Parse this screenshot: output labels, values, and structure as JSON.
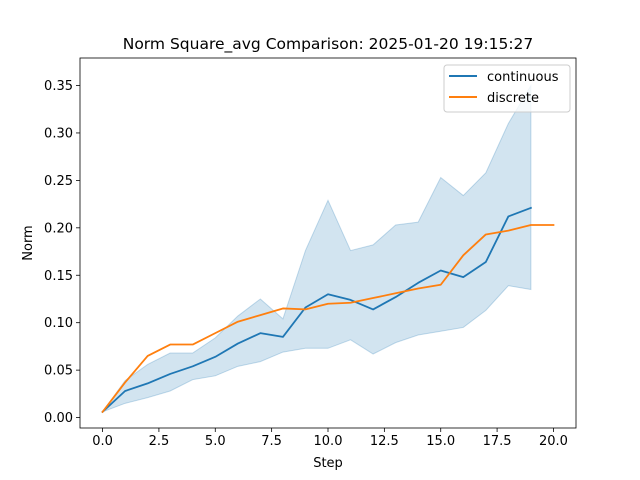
{
  "chart_data": {
    "type": "line",
    "title": "Norm Square_avg Comparison: 2025-01-20 19:15:27",
    "xlabel": "Step",
    "ylabel": "Norm",
    "xlim": [
      -1.0,
      21.0
    ],
    "ylim": [
      -0.011,
      0.379
    ],
    "xticks": [
      0.0,
      2.5,
      5.0,
      7.5,
      10.0,
      12.5,
      15.0,
      17.5,
      20.0
    ],
    "xtick_labels": [
      "0.0",
      "2.5",
      "5.0",
      "7.5",
      "10.0",
      "12.5",
      "15.0",
      "17.5",
      "20.0"
    ],
    "yticks": [
      0.0,
      0.05,
      0.1,
      0.15,
      0.2,
      0.25,
      0.3,
      0.35
    ],
    "ytick_labels": [
      "0.00",
      "0.05",
      "0.10",
      "0.15",
      "0.20",
      "0.25",
      "0.30",
      "0.35"
    ],
    "grid": false,
    "legend_position": "top-right",
    "series": [
      {
        "name": "continuous",
        "color": "#1f77b4",
        "x": [
          0,
          1,
          2,
          3,
          4,
          5,
          6,
          7,
          8,
          9,
          10,
          11,
          12,
          13,
          14,
          15,
          16,
          17,
          18,
          19
        ],
        "values": [
          0.006,
          0.028,
          0.036,
          0.046,
          0.054,
          0.064,
          0.078,
          0.089,
          0.085,
          0.116,
          0.13,
          0.124,
          0.114,
          0.127,
          0.142,
          0.155,
          0.148,
          0.164,
          0.212,
          0.221
        ],
        "band": {
          "lower": [
            0.006,
            0.015,
            0.021,
            0.028,
            0.04,
            0.044,
            0.054,
            0.059,
            0.069,
            0.073,
            0.073,
            0.082,
            0.067,
            0.079,
            0.087,
            0.091,
            0.095,
            0.113,
            0.139,
            0.135
          ],
          "upper": [
            0.006,
            0.039,
            0.056,
            0.068,
            0.068,
            0.084,
            0.107,
            0.125,
            0.104,
            0.176,
            0.229,
            0.176,
            0.182,
            0.203,
            0.206,
            0.253,
            0.234,
            0.258,
            0.31,
            0.35
          ]
        }
      },
      {
        "name": "discrete",
        "color": "#ff7f0e",
        "x": [
          0,
          1,
          2,
          3,
          4,
          5,
          6,
          7,
          8,
          9,
          10,
          11,
          12,
          13,
          14,
          15,
          16,
          17,
          18,
          19,
          20
        ],
        "values": [
          0.006,
          0.037,
          0.065,
          0.077,
          0.077,
          0.089,
          0.101,
          0.108,
          0.115,
          0.114,
          0.12,
          0.121,
          0.126,
          0.131,
          0.136,
          0.14,
          0.171,
          0.193,
          0.197,
          0.203,
          0.203
        ]
      }
    ]
  }
}
